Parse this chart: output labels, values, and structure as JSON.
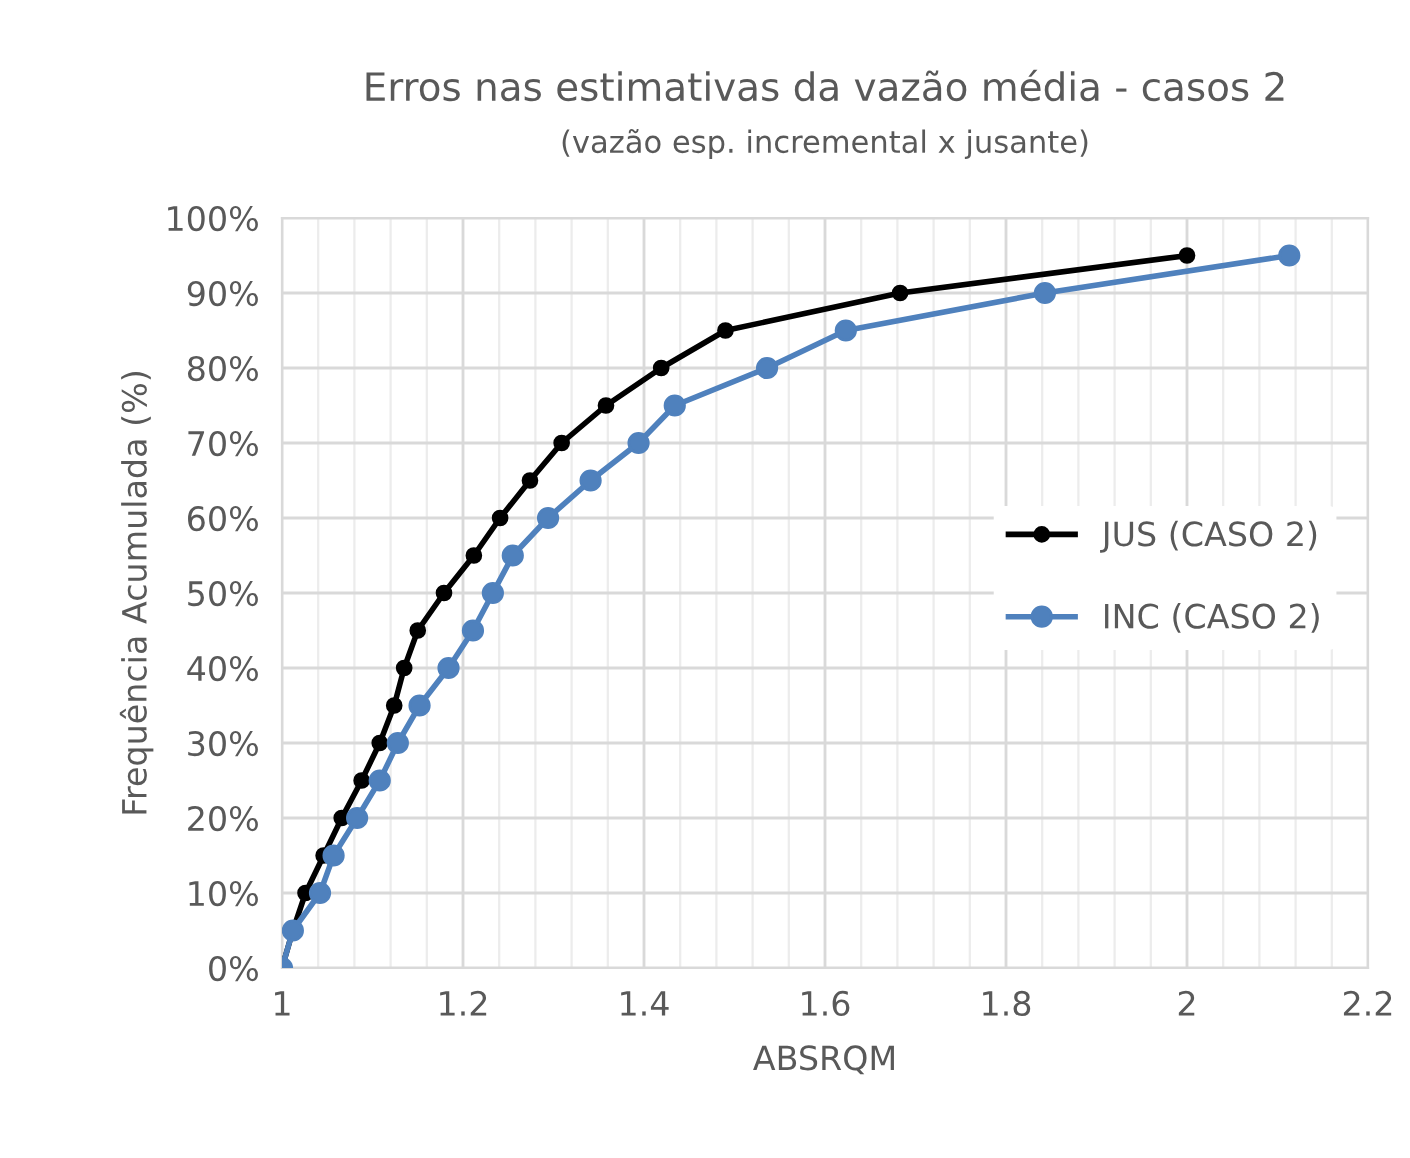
{
  "chart_data": {
    "type": "line",
    "title": "Erros nas estimativas da vazão média - casos 2",
    "subtitle": "(vazão esp. incremental x jusante)",
    "xlabel": "ABSRQM",
    "ylabel": "Frequência Acumulada (%)",
    "series": [
      {
        "name": "JUS (CASO 2)",
        "color": "#000000",
        "x": [
          1.0,
          1.012,
          1.026,
          1.046,
          1.066,
          1.088,
          1.108,
          1.124,
          1.135,
          1.15,
          1.179,
          1.212,
          1.241,
          1.274,
          1.309,
          1.358,
          1.419,
          1.49,
          1.683,
          2.0
        ],
        "values": [
          0,
          5,
          10,
          15,
          20,
          25,
          30,
          35,
          40,
          45,
          50,
          55,
          60,
          65,
          70,
          75,
          80,
          85,
          90,
          95
        ]
      },
      {
        "name": "INC (CASO 2)",
        "color": "#4f81bd",
        "x": [
          1.0,
          1.012,
          1.042,
          1.057,
          1.083,
          1.108,
          1.128,
          1.152,
          1.184,
          1.211,
          1.233,
          1.255,
          1.294,
          1.341,
          1.394,
          1.434,
          1.536,
          1.623,
          1.843,
          2.113
        ],
        "values": [
          0,
          5,
          10,
          15,
          20,
          25,
          30,
          35,
          40,
          45,
          50,
          55,
          60,
          65,
          70,
          75,
          80,
          85,
          90,
          95
        ]
      }
    ],
    "xlim": [
      1,
      2.2
    ],
    "xticks": [
      1,
      1.2,
      1.4,
      1.6,
      1.8,
      2,
      2.2
    ],
    "ylim": [
      0,
      100
    ],
    "yticks": [
      {
        "value": 0,
        "label": "0%"
      },
      {
        "value": 10,
        "label": "10%"
      },
      {
        "value": 20,
        "label": "20%"
      },
      {
        "value": 30,
        "label": "30%"
      },
      {
        "value": 40,
        "label": "40%"
      },
      {
        "value": 50,
        "label": "50%"
      },
      {
        "value": 60,
        "label": "60%"
      },
      {
        "value": 70,
        "label": "70%"
      },
      {
        "value": 80,
        "label": "80%"
      },
      {
        "value": 90,
        "label": "90%"
      },
      {
        "value": 100,
        "label": "100%"
      }
    ],
    "grid": true,
    "legend": "right",
    "marker": "circle",
    "line_style": "solid"
  }
}
